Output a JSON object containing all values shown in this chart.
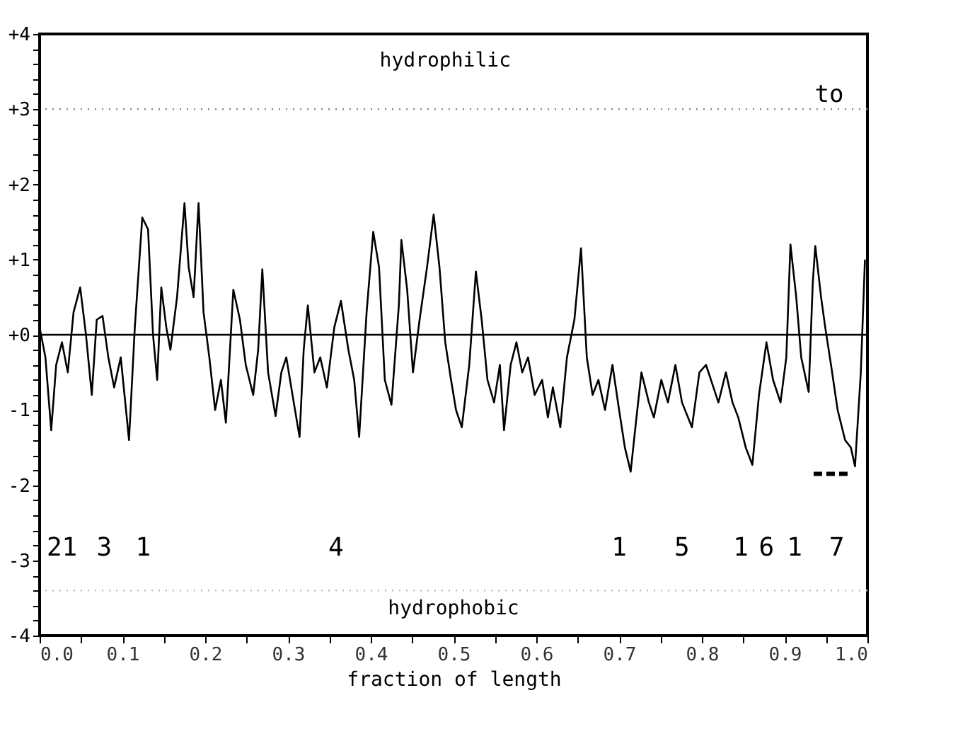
{
  "chart_data": {
    "type": "line",
    "xlabel": "fraction of length",
    "xlim": [
      0,
      1
    ],
    "ylim": [
      -4,
      4
    ],
    "grid": false,
    "marker": "none",
    "xticks": [
      {
        "value": 0,
        "label": "0.0"
      },
      {
        "value": 0.05,
        "label": null
      },
      {
        "value": 0.1,
        "label": "0.1"
      },
      {
        "value": 0.15,
        "label": null
      },
      {
        "value": 0.2,
        "label": "0.2"
      },
      {
        "value": 0.25,
        "label": null
      },
      {
        "value": 0.3,
        "label": "0.3"
      },
      {
        "value": 0.35,
        "label": null
      },
      {
        "value": 0.4,
        "label": "0.4"
      },
      {
        "value": 0.45,
        "label": null
      },
      {
        "value": 0.5,
        "label": "0.5"
      },
      {
        "value": 0.55,
        "label": null
      },
      {
        "value": 0.6,
        "label": "0.6"
      },
      {
        "value": 0.65,
        "label": null
      },
      {
        "value": 0.7,
        "label": "0.7"
      },
      {
        "value": 0.75,
        "label": null
      },
      {
        "value": 0.8,
        "label": "0.8"
      },
      {
        "value": 0.85,
        "label": null
      },
      {
        "value": 0.9,
        "label": "0.9"
      },
      {
        "value": 0.95,
        "label": null
      },
      {
        "value": 1,
        "label": "1.0"
      }
    ],
    "yticks": [
      {
        "value": 4,
        "label": "+4"
      },
      {
        "value": 3.8,
        "label": null
      },
      {
        "value": 3.6,
        "label": null
      },
      {
        "value": 3.4,
        "label": null
      },
      {
        "value": 3.2,
        "label": null
      },
      {
        "value": 3,
        "label": "+3"
      },
      {
        "value": 2.8,
        "label": null
      },
      {
        "value": 2.6,
        "label": null
      },
      {
        "value": 2.4,
        "label": null
      },
      {
        "value": 2.2,
        "label": null
      },
      {
        "value": 2,
        "label": "+2"
      },
      {
        "value": 1.8,
        "label": null
      },
      {
        "value": 1.6,
        "label": null
      },
      {
        "value": 1.4,
        "label": null
      },
      {
        "value": 1.2,
        "label": null
      },
      {
        "value": 1,
        "label": "+1"
      },
      {
        "value": 0.8,
        "label": null
      },
      {
        "value": 0.6,
        "label": null
      },
      {
        "value": 0.4,
        "label": null
      },
      {
        "value": 0.2,
        "label": null
      },
      {
        "value": 0,
        "label": "+0"
      },
      {
        "value": -0.2,
        "label": null
      },
      {
        "value": -0.4,
        "label": null
      },
      {
        "value": -0.6,
        "label": null
      },
      {
        "value": -0.8,
        "label": null
      },
      {
        "value": -1,
        "label": "-1"
      },
      {
        "value": -1.2,
        "label": null
      },
      {
        "value": -1.4,
        "label": null
      },
      {
        "value": -1.6,
        "label": null
      },
      {
        "value": -1.8,
        "label": null
      },
      {
        "value": -2,
        "label": "-2"
      },
      {
        "value": -2.2,
        "label": null
      },
      {
        "value": -2.4,
        "label": null
      },
      {
        "value": -2.6,
        "label": null
      },
      {
        "value": -2.8,
        "label": null
      },
      {
        "value": -3,
        "label": "-3"
      },
      {
        "value": -3.2,
        "label": null
      },
      {
        "value": -3.4,
        "label": null
      },
      {
        "value": -3.6,
        "label": null
      },
      {
        "value": -3.8,
        "label": null
      },
      {
        "value": -4,
        "label": "-4"
      }
    ],
    "series": [
      {
        "color": "#000000",
        "line_style": "solid",
        "x": [
          0,
          0.007,
          0.014,
          0.02,
          0.027,
          0.034,
          0.041,
          0.049,
          0.056,
          0.063,
          0.069,
          0.076,
          0.083,
          0.09,
          0.098,
          0.108,
          0.115,
          0.124,
          0.131,
          0.137,
          0.142,
          0.147,
          0.153,
          0.158,
          0.166,
          0.175,
          0.18,
          0.186,
          0.192,
          0.198,
          0.205,
          0.212,
          0.219,
          0.225,
          0.234,
          0.242,
          0.249,
          0.258,
          0.264,
          0.269,
          0.276,
          0.285,
          0.292,
          0.298,
          0.307,
          0.314,
          0.319,
          0.324,
          0.332,
          0.339,
          0.347,
          0.356,
          0.364,
          0.373,
          0.38,
          0.386,
          0.395,
          0.403,
          0.41,
          0.417,
          0.425,
          0.434,
          0.437,
          0.444,
          0.451,
          0.459,
          0.468,
          0.476,
          0.483,
          0.49,
          0.497,
          0.503,
          0.51,
          0.519,
          0.527,
          0.534,
          0.541,
          0.549,
          0.556,
          0.561,
          0.569,
          0.576,
          0.583,
          0.59,
          0.598,
          0.607,
          0.614,
          0.62,
          0.629,
          0.637,
          0.646,
          0.654,
          0.661,
          0.668,
          0.675,
          0.683,
          0.692,
          0.7,
          0.707,
          0.714,
          0.72,
          0.727,
          0.736,
          0.742,
          0.751,
          0.759,
          0.768,
          0.776,
          0.788,
          0.797,
          0.805,
          0.814,
          0.82,
          0.829,
          0.837,
          0.844,
          0.853,
          0.861,
          0.869,
          0.878,
          0.886,
          0.895,
          0.902,
          0.907,
          0.914,
          0.92,
          0.929,
          0.934,
          0.937,
          0.944,
          0.949,
          0.956,
          0.964,
          0.973,
          0.98,
          0.985,
          0.992,
          0.997
        ],
        "values": [
          0.1,
          -0.3,
          -1.27,
          -0.4,
          -0.1,
          -0.5,
          0.3,
          0.63,
          0.0,
          -0.8,
          0.2,
          0.25,
          -0.3,
          -0.7,
          -0.3,
          -1.4,
          0.1,
          1.56,
          1.4,
          0.0,
          -0.6,
          0.63,
          0.1,
          -0.2,
          0.5,
          1.75,
          0.9,
          0.5,
          1.75,
          0.3,
          -0.3,
          -1.0,
          -0.6,
          -1.17,
          0.6,
          0.2,
          -0.4,
          -0.8,
          -0.2,
          0.87,
          -0.5,
          -1.08,
          -0.5,
          -0.3,
          -0.9,
          -1.36,
          -0.2,
          0.39,
          -0.5,
          -0.3,
          -0.7,
          0.1,
          0.45,
          -0.2,
          -0.6,
          -1.36,
          0.3,
          1.37,
          0.9,
          -0.6,
          -0.93,
          0.4,
          1.26,
          0.6,
          -0.5,
          0.2,
          0.9,
          1.6,
          0.9,
          -0.1,
          -0.6,
          -1.0,
          -1.23,
          -0.4,
          0.84,
          0.2,
          -0.6,
          -0.9,
          -0.4,
          -1.27,
          -0.4,
          -0.1,
          -0.5,
          -0.3,
          -0.8,
          -0.6,
          -1.1,
          -0.7,
          -1.23,
          -0.3,
          0.2,
          1.15,
          -0.3,
          -0.8,
          -0.6,
          -1.0,
          -0.4,
          -1.0,
          -1.5,
          -1.82,
          -1.2,
          -0.5,
          -0.9,
          -1.1,
          -0.6,
          -0.9,
          -0.4,
          -0.9,
          -1.23,
          -0.5,
          -0.4,
          -0.7,
          -0.9,
          -0.5,
          -0.9,
          -1.1,
          -1.5,
          -1.73,
          -0.8,
          -0.1,
          -0.6,
          -0.9,
          -0.3,
          1.2,
          0.5,
          -0.3,
          -0.76,
          0.7,
          1.18,
          0.5,
          0.1,
          -0.4,
          -1.0,
          -1.4,
          -1.5,
          -1.75,
          -0.5,
          1.0
        ]
      },
      {
        "color": "#000000",
        "line_style": "dashed",
        "x": [
          0.935,
          0.98
        ],
        "values": [
          -1.85,
          -1.85
        ]
      }
    ],
    "ref_lines": [
      {
        "axis": "y",
        "value": 0,
        "color": "#000000",
        "line_style": "solid"
      },
      {
        "axis": "y",
        "value": 3,
        "color": "#888888",
        "line_style": "dotted",
        "label": "to"
      },
      {
        "axis": "y",
        "value": -3.4,
        "color": "#bbbbbb",
        "line_style": "dotted"
      }
    ],
    "annotations": [
      "hydrophilic",
      "hydrophobic",
      "21",
      "3",
      "1",
      "4",
      "1",
      "5",
      "1",
      "6",
      "1",
      "7"
    ]
  }
}
